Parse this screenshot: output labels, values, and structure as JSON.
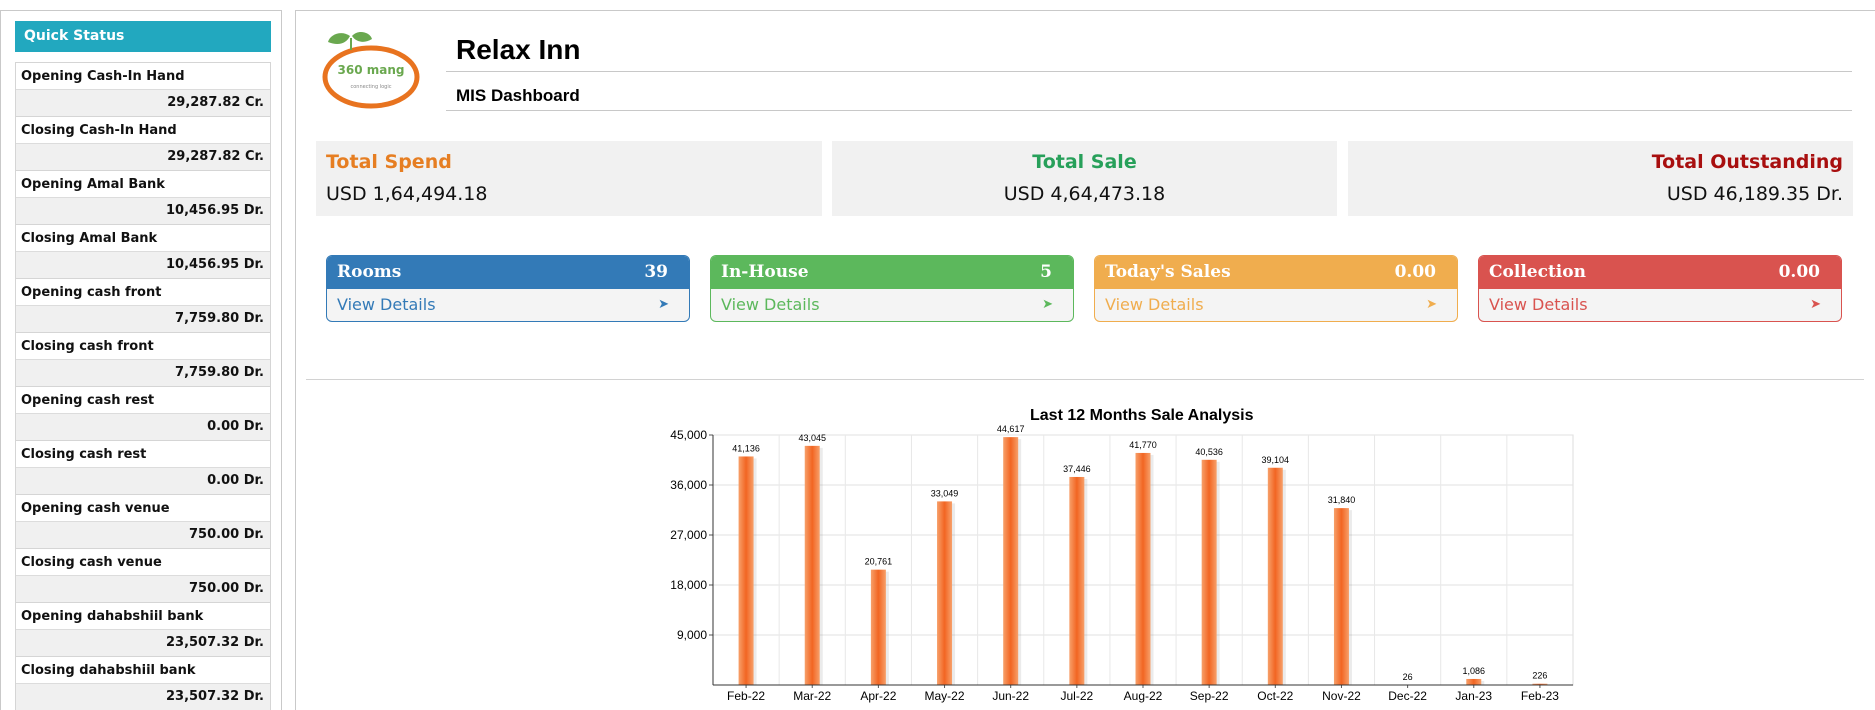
{
  "quick_status": {
    "title": "Quick Status",
    "items": [
      {
        "label": "Opening Cash-In Hand",
        "value": "29,287.82 Cr."
      },
      {
        "label": "Closing Cash-In Hand",
        "value": "29,287.82 Cr."
      },
      {
        "label": "Opening Amal Bank",
        "value": "10,456.95 Dr."
      },
      {
        "label": "Closing Amal Bank",
        "value": "10,456.95 Dr."
      },
      {
        "label": "Opening cash front",
        "value": "7,759.80 Dr."
      },
      {
        "label": "Closing cash front",
        "value": "7,759.80 Dr."
      },
      {
        "label": "Opening cash rest",
        "value": "0.00 Dr."
      },
      {
        "label": "Closing cash rest",
        "value": "0.00 Dr."
      },
      {
        "label": "Opening cash venue",
        "value": "750.00 Dr."
      },
      {
        "label": "Closing cash venue",
        "value": "750.00 Dr."
      },
      {
        "label": "Opening dahabshiil bank",
        "value": "23,507.32 Dr."
      },
      {
        "label": "Closing dahabshiil bank",
        "value": "23,507.32 Dr."
      }
    ]
  },
  "header": {
    "title": "Relax Inn",
    "subtitle": "MIS Dashboard",
    "logo_text": "360 mang",
    "logo_tagline": "connecting logic"
  },
  "summary": {
    "spend": {
      "label": "Total Spend",
      "value": "USD 1,64,494.18",
      "color": "#e67e22"
    },
    "sale": {
      "label": "Total Sale",
      "value": "USD 4,64,473.18",
      "color": "#27a05a"
    },
    "outstanding": {
      "label": "Total Outstanding",
      "value": "USD 46,189.35 Dr.",
      "color": "#a80f0f"
    }
  },
  "cards": [
    {
      "label": "Rooms",
      "count": "39",
      "link": "View Details",
      "color": "#337ab7"
    },
    {
      "label": "In-House",
      "count": "5",
      "link": "View Details",
      "color": "#5cb85c"
    },
    {
      "label": "Today's Sales",
      "count": "0.00",
      "link": "View Details",
      "color": "#f0ad4e"
    },
    {
      "label": "Collection",
      "count": "0.00",
      "link": "View Details",
      "color": "#d9534f"
    }
  ],
  "chart_data": {
    "type": "bar",
    "title": "Last 12 Months Sale Analysis",
    "xlabel": "",
    "ylabel": "",
    "categories": [
      "Feb-22",
      "Mar-22",
      "Apr-22",
      "May-22",
      "Jun-22",
      "Jul-22",
      "Aug-22",
      "Sep-22",
      "Oct-22",
      "Nov-22",
      "Dec-22",
      "Jan-23",
      "Feb-23"
    ],
    "values": [
      41136,
      43045,
      20761,
      33049,
      44617,
      37446,
      41770,
      40536,
      39104,
      31840,
      26,
      1086,
      226
    ],
    "value_labels": [
      "41,136",
      "43,045",
      "20,761",
      "33,049",
      "44,617",
      "37,446",
      "41,770",
      "40,536",
      "39,104",
      "31,840",
      "26",
      "1,086",
      "226"
    ],
    "ylim": [
      0,
      45000
    ],
    "yticks": [
      9000,
      18000,
      27000,
      36000,
      45000
    ],
    "ytick_labels": [
      "9,000",
      "18,000",
      "27,000",
      "36,000",
      "45,000"
    ],
    "grid": true,
    "bar_color": "#f26522"
  }
}
